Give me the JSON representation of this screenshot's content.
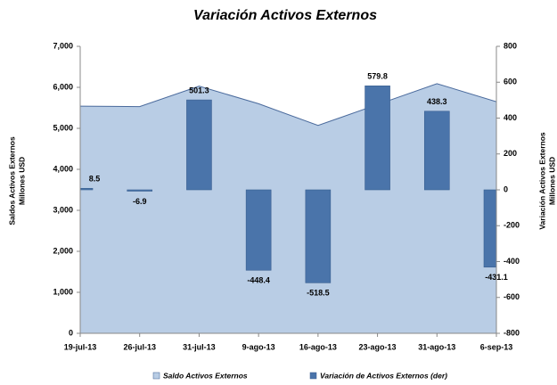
{
  "chart_data": {
    "type": "area-bar",
    "title": "Variación Activos Externos",
    "y_label": [
      "Saldos Activos Externos",
      "Millones USD"
    ],
    "y2_label": [
      "Variación Activos Externos",
      "Millones USD"
    ],
    "categories": [
      "19-jul-13",
      "26-jul-13",
      "31-jul-13",
      "9-ago-13",
      "16-ago-13",
      "23-ago-13",
      "31-ago-13",
      "6-sep-13"
    ],
    "series": [
      {
        "name": "Saldo Activos Externos",
        "type": "area",
        "color": "#b9cde5",
        "line_color": "#4a6a9c",
        "values": [
          5540,
          5530,
          6030,
          5600,
          5070,
          5580,
          6090,
          5650
        ]
      },
      {
        "name": "Variación de Activos Externos (der)",
        "type": "bar",
        "axis": "y2",
        "color": "#4a74aa",
        "values": [
          8.5,
          -6.9,
          501.3,
          -448.4,
          -518.5,
          579.8,
          438.3,
          -431.1
        ]
      }
    ],
    "ylim": [
      0,
      7000
    ],
    "yticks": [
      {
        "value": 0,
        "label": "0"
      },
      {
        "value": 1000,
        "label": "1,000"
      },
      {
        "value": 2000,
        "label": "2,000"
      },
      {
        "value": 3000,
        "label": "3,000"
      },
      {
        "value": 4000,
        "label": "4,000"
      },
      {
        "value": 5000,
        "label": "5,000"
      },
      {
        "value": 6000,
        "label": "6,000"
      },
      {
        "value": 7000,
        "label": "7,000"
      }
    ],
    "y2lim": [
      -800,
      800
    ],
    "y2ticks": [
      -800,
      -600,
      -400,
      -200,
      0,
      200,
      400,
      600,
      800
    ],
    "legend": "bottom"
  }
}
